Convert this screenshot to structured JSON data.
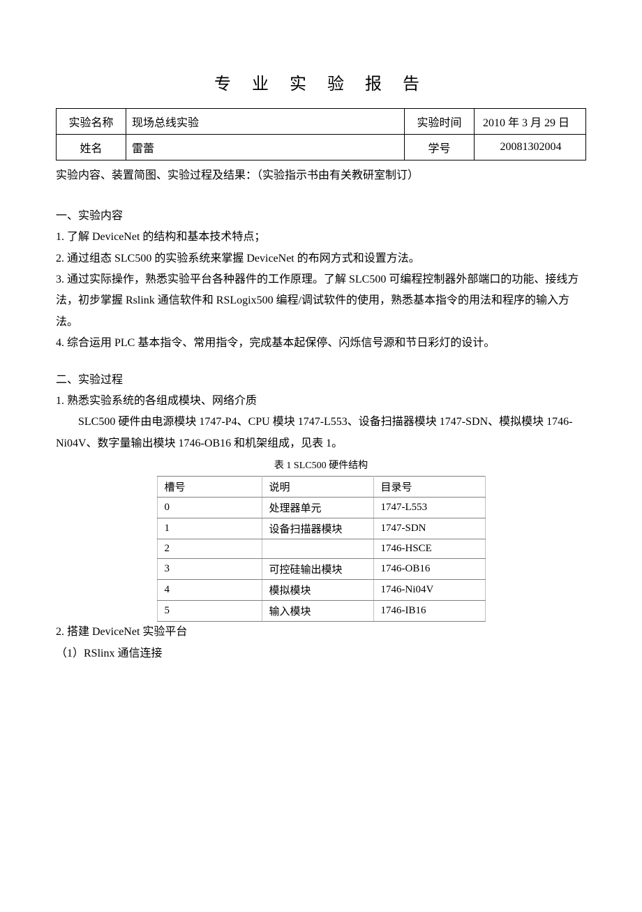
{
  "doc_title": "专 业 实 验 报 告",
  "header": {
    "label_exp_name": "实验名称",
    "exp_name": "现场总线实验",
    "label_exp_time": "实验时间",
    "exp_time": "2010 年 3 月 29 日",
    "label_student_name": "姓名",
    "student_name": "雷蕾",
    "label_student_id": "学号",
    "student_id": "20081302004"
  },
  "content_note": "实验内容、装置简图、实验过程及结果：（实验指示书由有关教研室制订）",
  "section1": {
    "heading": "一、实验内容",
    "item1": "1. 了解 DeviceNet 的结构和基本技术特点；",
    "item2": "2. 通过组态 SLC500 的实验系统来掌握 DeviceNet 的布网方式和设置方法。",
    "item3": "3. 通过实际操作，熟悉实验平台各种器件的工作原理。了解 SLC500 可编程控制器外部端口的功能、接线方法，初步掌握 Rslink 通信软件和 RSLogix500 编程/调试软件的使用，熟悉基本指令的用法和程序的输入方法。",
    "item4": "4. 综合运用 PLC 基本指令、常用指令，完成基本起保停、闪烁信号源和节日彩灯的设计。"
  },
  "section2": {
    "heading": "二、实验过程",
    "item1": "1. 熟悉实验系统的各组成模块、网络介质",
    "para1": "SLC500 硬件由电源模块 1747-P4、CPU 模块 1747-L553、设备扫描器模块 1747-SDN、模拟模块 1746-Ni04V、数字量输出模块 1746-OB16 和机架组成，见表 1。",
    "table_caption": "表 1 SLC500 硬件结构",
    "item2": "2. 搭建 DeviceNet 实验平台",
    "sub2_1": "（1）RSlinx 通信连接"
  },
  "hardware_table": {
    "columns": [
      "槽号",
      "说明",
      "目录号"
    ],
    "rows": [
      [
        "0",
        "处理器单元",
        "1747-L553"
      ],
      [
        "1",
        "设备扫描器模块",
        "1747-SDN"
      ],
      [
        "2",
        "",
        "1746-HSCE"
      ],
      [
        "3",
        "可控硅输出模块",
        "1746-OB16"
      ],
      [
        "4",
        "模拟模块",
        "1746-Ni04V"
      ],
      [
        "5",
        "输入模块",
        "1746-IB16"
      ]
    ]
  }
}
